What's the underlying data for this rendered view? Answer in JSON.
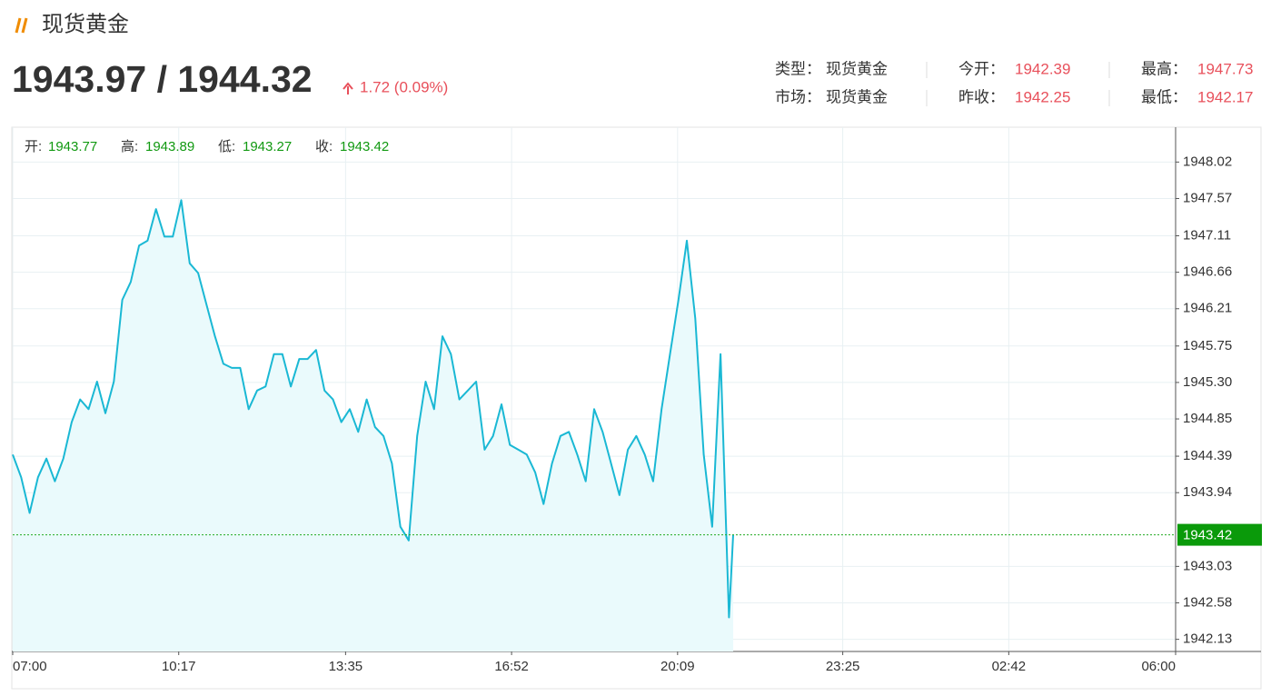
{
  "header": {
    "title": "现货黄金",
    "price": "1943.97 / 1944.32",
    "change": "1.72 (0.09%)"
  },
  "info": [
    {
      "label": "类型：",
      "value": "现货黄金"
    },
    {
      "label": "市场：",
      "value": "现货黄金"
    },
    {
      "label": "今开：",
      "value": 1942.39
    },
    {
      "label": "昨收：",
      "value": 1942.25
    },
    {
      "label": "最高：",
      "value": 1947.73
    },
    {
      "label": "最低：",
      "value": 1942.17
    }
  ],
  "chart_data": {
    "type": "line",
    "ohlc": [
      {
        "label": "开:",
        "value": 1943.77
      },
      {
        "label": "高:",
        "value": 1943.89
      },
      {
        "label": "低:",
        "value": 1943.27
      },
      {
        "label": "收:",
        "value": 1943.42
      }
    ],
    "last_price": 1943.42,
    "x": [
      "07:00",
      "07:10",
      "07:20",
      "07:30",
      "07:40",
      "07:50",
      "08:00",
      "08:10",
      "08:20",
      "08:30",
      "08:40",
      "08:50",
      "09:00",
      "09:10",
      "09:20",
      "09:30",
      "09:40",
      "09:50",
      "10:00",
      "10:10",
      "10:20",
      "10:30",
      "10:40",
      "10:50",
      "11:00",
      "11:10",
      "11:20",
      "11:30",
      "11:40",
      "11:50",
      "12:00",
      "12:10",
      "12:20",
      "12:30",
      "12:40",
      "12:50",
      "13:00",
      "13:10",
      "13:20",
      "13:30",
      "13:40",
      "13:50",
      "14:00",
      "14:10",
      "14:20",
      "14:30",
      "14:40",
      "14:50",
      "15:00",
      "15:10",
      "15:20",
      "15:30",
      "15:40",
      "15:50",
      "16:00",
      "16:10",
      "16:20",
      "16:30",
      "16:40",
      "16:50",
      "17:00",
      "17:10",
      "17:20",
      "17:30",
      "17:40",
      "17:50",
      "18:00",
      "18:10",
      "18:20",
      "18:30",
      "18:40",
      "18:50",
      "19:00",
      "19:10",
      "19:20",
      "19:30",
      "19:40",
      "19:50",
      "20:00",
      "20:10",
      "20:20",
      "20:30",
      "20:40",
      "20:50",
      "21:00",
      "21:10",
      "21:15"
    ],
    "series": [
      {
        "name": "现货黄金",
        "color": "#1ab8d4",
        "values": [
          1944.41,
          1944.13,
          1943.69,
          1944.13,
          1944.36,
          1944.08,
          1944.36,
          1944.81,
          1945.09,
          1944.97,
          1945.31,
          1944.92,
          1945.31,
          1946.32,
          1946.54,
          1946.99,
          1947.05,
          1947.44,
          1947.1,
          1947.1,
          1947.55,
          1946.77,
          1946.65,
          1946.26,
          1945.87,
          1945.53,
          1945.48,
          1945.48,
          1944.97,
          1945.2,
          1945.25,
          1945.65,
          1945.65,
          1945.25,
          1945.59,
          1945.59,
          1945.7,
          1945.2,
          1945.09,
          1944.81,
          1944.97,
          1944.69,
          1945.09,
          1944.75,
          1944.64,
          1944.3,
          1943.52,
          1943.35,
          1944.64,
          1945.31,
          1944.97,
          1945.87,
          1945.65,
          1945.09,
          1945.2,
          1945.31,
          1944.47,
          1944.64,
          1945.03,
          1944.53,
          1944.47,
          1944.41,
          1944.19,
          1943.8,
          1944.3,
          1944.64,
          1944.69,
          1944.41,
          1944.08,
          1944.97,
          1944.69,
          1944.3,
          1943.91,
          1944.47,
          1944.64,
          1944.41,
          1944.08,
          1944.97,
          1945.65,
          1946.32,
          1947.05,
          1946.09,
          1944.41,
          1943.52,
          1945.65,
          1942.4,
          1943.42
        ]
      }
    ],
    "xlim": [
      "07:00",
      "06:00"
    ],
    "xticks": [
      "07:00",
      "10:17",
      "13:35",
      "16:52",
      "20:09",
      "23:25",
      "02:42",
      "06:00"
    ],
    "ylim": [
      1941.98,
      1948.45
    ],
    "yticks": [
      1942.13,
      1942.58,
      1943.03,
      1943.94,
      1944.39,
      1944.85,
      {
        "value": 1945.3,
        "label": "1945.30"
      },
      1945.75,
      1946.21,
      1946.66,
      1947.11,
      1947.57,
      1948.02
    ],
    "grid": true
  }
}
